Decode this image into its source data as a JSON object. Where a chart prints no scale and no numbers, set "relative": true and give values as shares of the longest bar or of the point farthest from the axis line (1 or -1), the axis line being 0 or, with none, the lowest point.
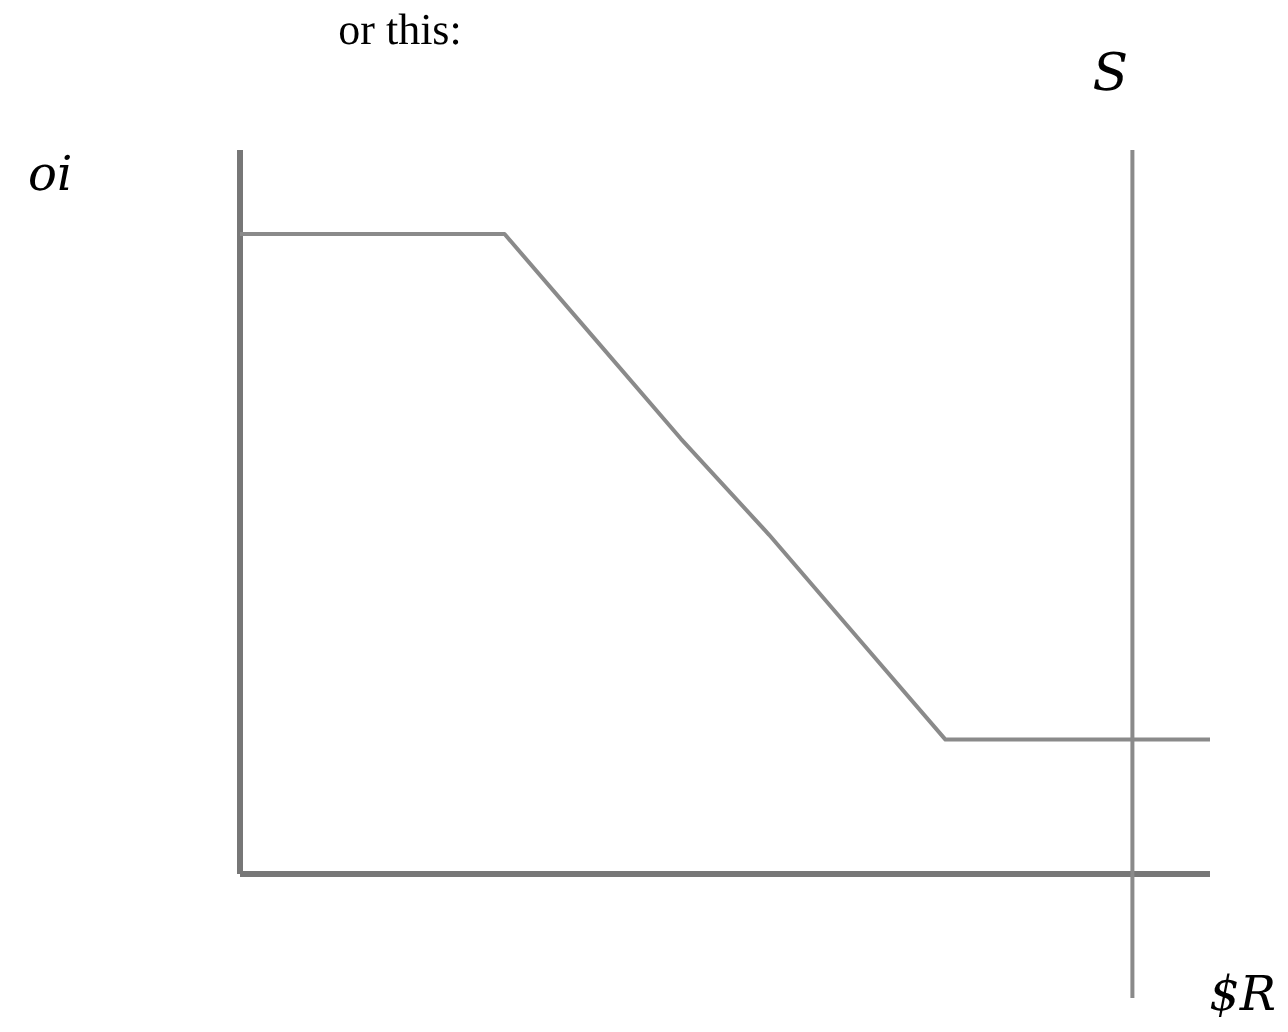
{
  "chart_data": {
    "type": "line",
    "title": "or this:",
    "xlabel": "$R",
    "ylabel": "oi",
    "relative": true,
    "categories": [
      null,
      null,
      null,
      null,
      null,
      null,
      null,
      null,
      null,
      null,
      null,
      null
    ],
    "series": [
      {
        "color": "#8a8a8a",
        "values": [
          1,
          1,
          1,
          1,
          0.84,
          0.68,
          0.53,
          0.37,
          0.21,
          0.21,
          0.21,
          0.21
        ]
      }
    ],
    "annotations": [
      "S"
    ],
    "grid": false,
    "legend": false,
    "marker": "none",
    "line_style": "solid"
  }
}
